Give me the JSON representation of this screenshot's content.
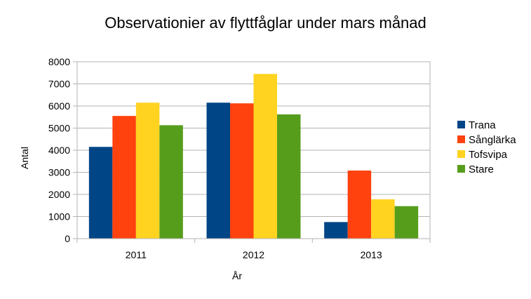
{
  "chart_data": {
    "type": "bar",
    "title": "Observationier av flyttfåglar under mars månad",
    "xlabel": "År",
    "ylabel": "Antal",
    "categories": [
      "2011",
      "2012",
      "2013"
    ],
    "ylim": [
      0,
      8000
    ],
    "yticks": [
      0,
      1000,
      2000,
      3000,
      4000,
      5000,
      6000,
      7000,
      8000
    ],
    "grid": true,
    "legend_position": "right",
    "series": [
      {
        "name": "Trana",
        "color": "#004586",
        "values": [
          4150,
          6150,
          750
        ]
      },
      {
        "name": "Sånglärka",
        "color": "#ff420e",
        "values": [
          5550,
          6120,
          3080
        ]
      },
      {
        "name": "Tofsvipa",
        "color": "#ffd320",
        "values": [
          6150,
          7450,
          1780
        ]
      },
      {
        "name": "Stare",
        "color": "#579d1c",
        "values": [
          5130,
          5620,
          1470
        ]
      }
    ]
  }
}
